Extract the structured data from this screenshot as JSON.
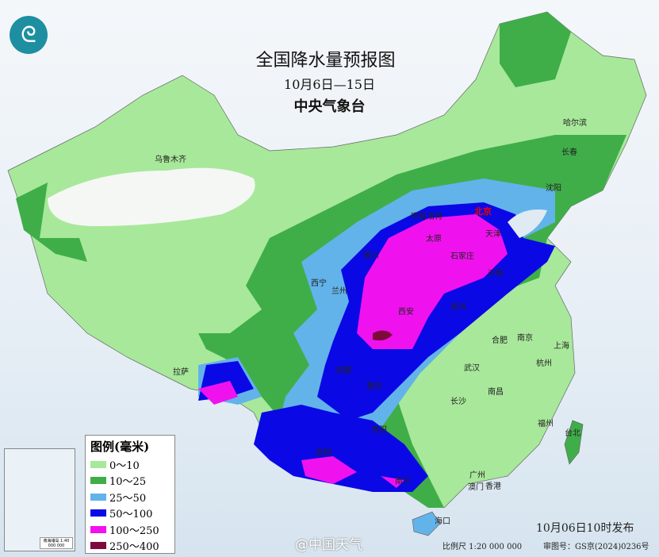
{
  "header": {
    "title": "全国降水量预报图",
    "date_range": "10月6日—15日",
    "issuer": "中央气象台"
  },
  "legend": {
    "title": "图例(毫米)",
    "items": [
      {
        "label": "0～10",
        "color": "#a8e89a"
      },
      {
        "label": "10～25",
        "color": "#3fae49"
      },
      {
        "label": "25～50",
        "color": "#62b3ea"
      },
      {
        "label": "50～100",
        "color": "#0b08e6"
      },
      {
        "label": "100～250",
        "color": "#f012ee"
      },
      {
        "label": "250～400",
        "color": "#7d0a3a"
      }
    ]
  },
  "inset": {
    "scale": "南海诸岛 1:40 000 000"
  },
  "cities": [
    {
      "name": "乌鲁木齐",
      "capital": false
    },
    {
      "name": "哈尔滨",
      "capital": false
    },
    {
      "name": "长春",
      "capital": false
    },
    {
      "name": "沈阳",
      "capital": false
    },
    {
      "name": "北京",
      "capital": true
    },
    {
      "name": "天津",
      "capital": false
    },
    {
      "name": "呼和浩特",
      "capital": false
    },
    {
      "name": "银川",
      "capital": false
    },
    {
      "name": "太原",
      "capital": false
    },
    {
      "name": "石家庄",
      "capital": false
    },
    {
      "name": "济南",
      "capital": false
    },
    {
      "name": "西宁",
      "capital": false
    },
    {
      "name": "兰州",
      "capital": false
    },
    {
      "name": "西安",
      "capital": false
    },
    {
      "name": "郑州",
      "capital": false
    },
    {
      "name": "合肥",
      "capital": false
    },
    {
      "name": "南京",
      "capital": false
    },
    {
      "name": "上海",
      "capital": false
    },
    {
      "name": "杭州",
      "capital": false
    },
    {
      "name": "武汉",
      "capital": false
    },
    {
      "name": "成都",
      "capital": false
    },
    {
      "name": "重庆",
      "capital": false
    },
    {
      "name": "拉萨",
      "capital": false
    },
    {
      "name": "贵阳",
      "capital": false
    },
    {
      "name": "长沙",
      "capital": false
    },
    {
      "name": "南昌",
      "capital": false
    },
    {
      "name": "福州",
      "capital": false
    },
    {
      "name": "台北",
      "capital": false
    },
    {
      "name": "昆明",
      "capital": false
    },
    {
      "name": "南宁",
      "capital": false
    },
    {
      "name": "广州",
      "capital": false
    },
    {
      "name": "澳门",
      "capital": false
    },
    {
      "name": "香港",
      "capital": false
    },
    {
      "name": "海口",
      "capital": false
    }
  ],
  "footer": {
    "issued": "10月06日10时发布",
    "scale": "比例尺 1:20 000 000",
    "map_number": "审图号：GS京(2024)0236号"
  },
  "watermark": "@中国天气"
}
